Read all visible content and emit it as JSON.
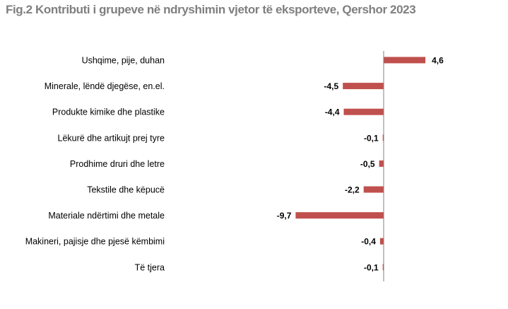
{
  "chart_data": {
    "type": "bar",
    "orientation": "horizontal",
    "title": "Fig.2 Kontributi i grupeve në ndryshimin vjetor të eksporteve, Qershor 2023",
    "categories": [
      "Ushqime, pije, duhan",
      "Minerale, lëndë djegëse, en.el.",
      "Produkte kimike dhe plastike",
      "Lëkurë dhe artikujt prej tyre",
      "Prodhime druri dhe letre",
      "Tekstile dhe këpucë",
      "Materiale ndërtimi dhe metale",
      "Makineri, pajisje dhe pjesë këmbimi",
      "Të tjera"
    ],
    "values": [
      4.6,
      -4.5,
      -4.4,
      -0.1,
      -0.5,
      -2.2,
      -9.7,
      -0.4,
      -0.1
    ],
    "value_labels": [
      "4,6",
      "-4,5",
      "-4,4",
      "-0,1",
      "-0,5",
      "-2,2",
      "-9,7",
      "-0,4",
      "-0,1"
    ],
    "bar_color": "#c0504d",
    "xlim": [
      -9.7,
      4.6
    ],
    "grid": false,
    "legend": "none"
  }
}
